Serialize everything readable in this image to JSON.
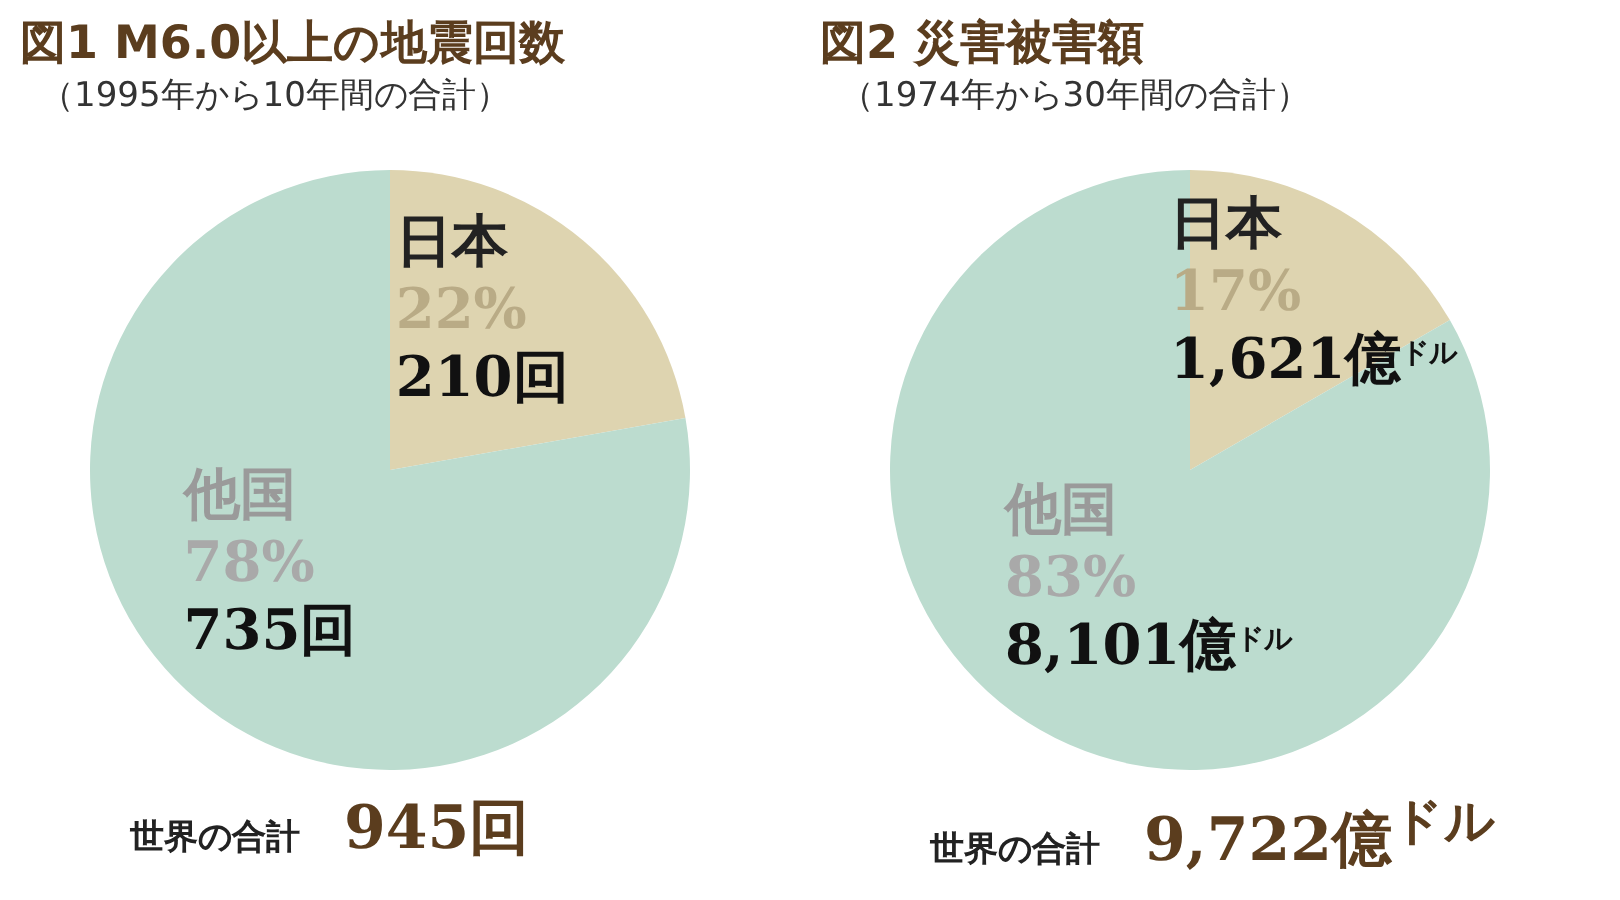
{
  "chart_data": [
    {
      "type": "pie",
      "title": "図1 M6.0以上の地震回数",
      "subtitle": "（1995年から10年間の合計）",
      "categories": [
        "日本",
        "他国"
      ],
      "values": [
        210,
        735
      ],
      "colors": [
        "#ded4b0",
        "#bcdccf"
      ],
      "value_labels": [
        "22%\n210回",
        "78%\n735回"
      ],
      "annotations": [
        "世界の合計 945回"
      ]
    },
    {
      "type": "pie",
      "title": "図2 災害被害額",
      "subtitle": "（1974年から30年間の合計）",
      "categories": [
        "日本",
        "他国"
      ],
      "values": [
        1621,
        8101
      ],
      "colors": [
        "#ded4b0",
        "#bcdccf"
      ],
      "value_labels": [
        "17%\n1,621億$^{ドル}$",
        "83%\n8,101億$^{ドル}$"
      ],
      "annotations": [
        "世界の合計 9,722億$^{ドル}$"
      ]
    }
  ]
}
